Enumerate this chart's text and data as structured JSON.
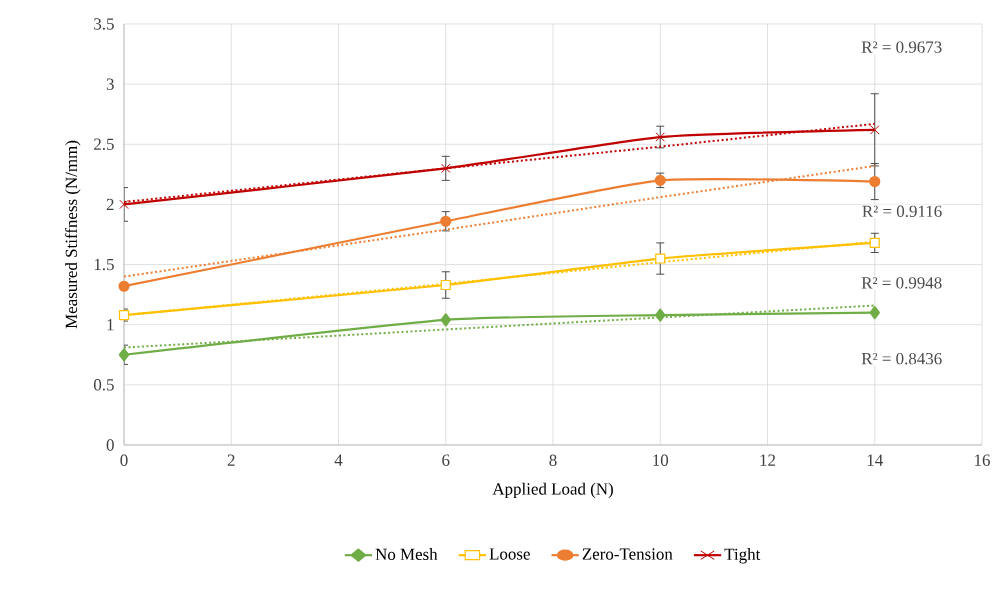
{
  "chart_data": {
    "type": "line",
    "xlabel": "Applied Load (N)",
    "ylabel": "Measured Stiffness (N/mm)",
    "x": [
      0,
      6,
      10,
      14
    ],
    "series": [
      {
        "name": "No Mesh",
        "color": "#70ad47",
        "marker": "diamond",
        "values": [
          0.75,
          1.04,
          1.08,
          1.1
        ],
        "errors": [
          0.08,
          null,
          null,
          null
        ]
      },
      {
        "name": "Loose",
        "color": "#ffc000",
        "marker": "square",
        "values": [
          1.08,
          1.33,
          1.55,
          1.68
        ],
        "errors": [
          0.05,
          0.11,
          0.13,
          0.08
        ]
      },
      {
        "name": "Zero-Tension",
        "color": "#ed7d31",
        "marker": "circle",
        "values": [
          1.32,
          1.86,
          2.2,
          2.19
        ],
        "errors": [
          null,
          0.08,
          0.06,
          0.15
        ]
      },
      {
        "name": "Tight",
        "color": "#c00000",
        "marker": "cross",
        "values": [
          2.0,
          2.3,
          2.56,
          2.62
        ],
        "errors": [
          0.14,
          0.1,
          0.09,
          0.3
        ]
      },
      {
        "type": "line",
        "color": "#70ad47",
        "line_style": "dotted",
        "marker": "none",
        "values": [
          0.81,
          0.96,
          1.06,
          1.16
        ]
      },
      {
        "type": "line",
        "color": "#ffc000",
        "line_style": "dotted",
        "marker": "none",
        "values": [
          1.08,
          1.34,
          1.52,
          1.69
        ]
      },
      {
        "type": "line",
        "color": "#ed7d31",
        "line_style": "dotted",
        "marker": "none",
        "values": [
          1.4,
          1.79,
          2.06,
          2.32
        ]
      },
      {
        "type": "line",
        "color": "#c00000",
        "line_style": "dotted",
        "marker": "none",
        "values": [
          2.02,
          2.3,
          2.48,
          2.67
        ]
      }
    ],
    "xlim": [
      0,
      16
    ],
    "xticks": [
      0,
      2,
      4,
      6,
      8,
      10,
      12,
      14,
      16
    ],
    "ylim": [
      0,
      3.5
    ],
    "yticks": [
      0,
      0.5,
      1,
      1.5,
      2,
      2.5,
      3,
      3.5
    ],
    "grid": true,
    "legend": "bottom",
    "annotations": [
      "R² = 0.9673",
      "R² = 0.9116",
      "R² = 0.9948",
      "R² = 0.8436"
    ]
  }
}
